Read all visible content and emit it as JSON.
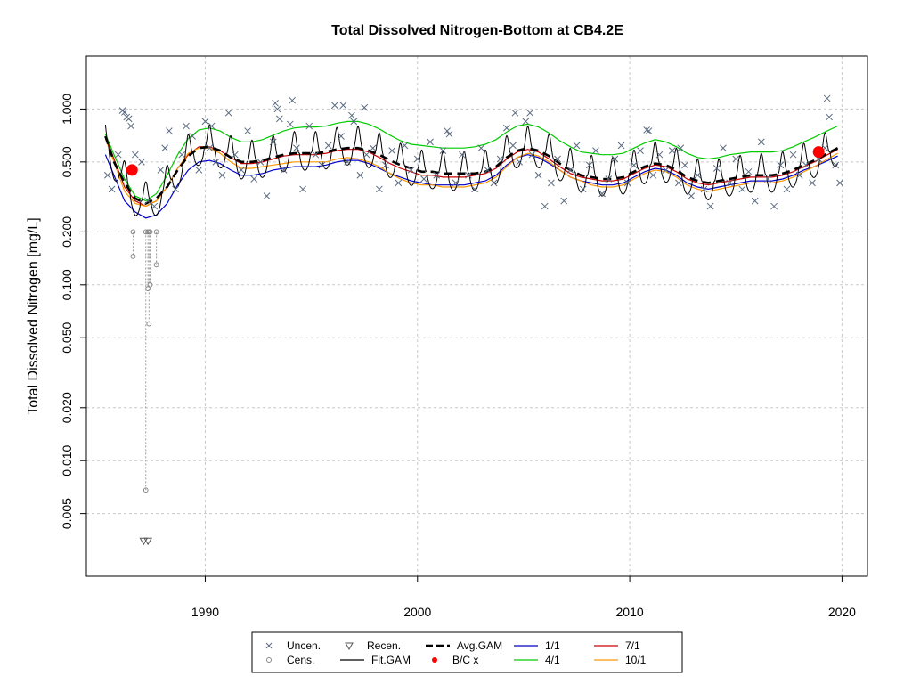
{
  "chart_data": {
    "type": "scatter",
    "title": "Total Dissolved Nitrogen-Bottom at CB4.2E",
    "xlabel": "",
    "ylabel": "Total Dissolved Nitrogen [mg/L]",
    "y_scale": "log",
    "xlim": [
      1984.4,
      2021.2
    ],
    "ylim": [
      0.0022,
      2.0
    ],
    "x_ticks": [
      1990,
      2000,
      2010,
      2020
    ],
    "x_tick_labels": [
      "1990",
      "2000",
      "2010",
      "2020"
    ],
    "y_ticks": [
      0.005,
      0.01,
      0.02,
      0.05,
      0.1,
      0.2,
      0.5,
      1.0
    ],
    "y_tick_labels": [
      "0.005",
      "0.010",
      "0.020",
      "0.050",
      "0.100",
      "0.200",
      "0.500",
      "1.000"
    ],
    "grid": true,
    "legend_placement": "bottom",
    "legend": [
      {
        "label": "Uncen.",
        "symbol": "x",
        "color": "#5a6a80"
      },
      {
        "label": "Cens.",
        "symbol": "circle",
        "color": "#888888"
      },
      {
        "label": "Recen.",
        "symbol": "triangle-down",
        "color": "#555555"
      },
      {
        "label": "Fit.GAM",
        "symbol": "line",
        "color": "#000000"
      },
      {
        "label": "Avg.GAM",
        "symbol": "dashed-line",
        "color": "#000000"
      },
      {
        "label": "B/C x",
        "symbol": "filled-circle",
        "color": "#ff0000"
      },
      {
        "label": "1/1",
        "symbol": "line",
        "color": "#0000cc"
      },
      {
        "label": "4/1",
        "symbol": "line",
        "color": "#00cc00"
      },
      {
        "label": "7/1",
        "symbol": "line",
        "color": "#cc0000"
      },
      {
        "label": "10/1",
        "symbol": "line",
        "color": "#ff9900"
      }
    ],
    "series": [
      {
        "name": "Avg.GAM",
        "style": "dashed",
        "color": "#000000",
        "x": [
          1985.3,
          1985.7,
          1986.2,
          1986.7,
          1987.2,
          1987.7,
          1988.2,
          1988.7,
          1989.2,
          1989.7,
          1990.2,
          1990.7,
          1991.2,
          1991.7,
          1992.2,
          1992.7,
          1993.2,
          1993.7,
          1994.2,
          1994.7,
          1995.2,
          1995.7,
          1996.2,
          1996.7,
          1997.2,
          1997.7,
          1998.2,
          1998.7,
          1999.2,
          1999.7,
          2000.2,
          2000.7,
          2001.2,
          2001.7,
          2002.2,
          2002.7,
          2003.2,
          2003.7,
          2004.2,
          2004.7,
          2005.2,
          2005.7,
          2006.2,
          2006.7,
          2007.2,
          2007.7,
          2008.2,
          2008.7,
          2009.2,
          2009.7,
          2010.2,
          2010.7,
          2011.2,
          2011.7,
          2012.2,
          2012.7,
          2013.2,
          2013.7,
          2014.2,
          2014.7,
          2015.2,
          2015.7,
          2016.2,
          2016.7,
          2017.2,
          2017.7,
          2018.2,
          2018.7,
          2019.2,
          2019.8
        ],
        "y": [
          0.7,
          0.5,
          0.38,
          0.31,
          0.29,
          0.31,
          0.36,
          0.45,
          0.54,
          0.6,
          0.61,
          0.58,
          0.53,
          0.5,
          0.5,
          0.51,
          0.53,
          0.55,
          0.56,
          0.56,
          0.56,
          0.57,
          0.59,
          0.6,
          0.6,
          0.58,
          0.55,
          0.51,
          0.48,
          0.46,
          0.44,
          0.44,
          0.43,
          0.43,
          0.43,
          0.43,
          0.44,
          0.47,
          0.53,
          0.58,
          0.6,
          0.58,
          0.54,
          0.49,
          0.45,
          0.42,
          0.41,
          0.4,
          0.4,
          0.41,
          0.44,
          0.47,
          0.49,
          0.48,
          0.45,
          0.41,
          0.39,
          0.38,
          0.39,
          0.4,
          0.41,
          0.42,
          0.42,
          0.42,
          0.43,
          0.45,
          0.48,
          0.51,
          0.55,
          0.6
        ]
      },
      {
        "name": "1/1",
        "style": "solid",
        "color": "#0000cc",
        "x": [
          1985.3,
          1985.7,
          1986.2,
          1986.7,
          1987.2,
          1987.7,
          1988.2,
          1988.7,
          1989.2,
          1989.7,
          1990.2,
          1990.7,
          1991.2,
          1991.7,
          1992.2,
          1992.7,
          1993.2,
          1993.7,
          1994.2,
          1994.7,
          1995.2,
          1995.7,
          1996.2,
          1996.7,
          1997.2,
          1997.7,
          1998.2,
          1998.7,
          1999.2,
          1999.7,
          2000.2,
          2000.7,
          2001.2,
          2001.7,
          2002.2,
          2002.7,
          2003.2,
          2003.7,
          2004.2,
          2004.7,
          2005.2,
          2005.7,
          2006.2,
          2006.7,
          2007.2,
          2007.7,
          2008.2,
          2008.7,
          2009.2,
          2009.7,
          2010.2,
          2010.7,
          2011.2,
          2011.7,
          2012.2,
          2012.7,
          2013.2,
          2013.7,
          2014.2,
          2014.7,
          2015.2,
          2015.7,
          2016.2,
          2016.7,
          2017.2,
          2017.7,
          2018.2,
          2018.7,
          2019.2,
          2019.8
        ],
        "y": [
          0.55,
          0.42,
          0.3,
          0.26,
          0.24,
          0.25,
          0.29,
          0.37,
          0.45,
          0.5,
          0.51,
          0.49,
          0.45,
          0.42,
          0.42,
          0.43,
          0.45,
          0.46,
          0.47,
          0.47,
          0.47,
          0.48,
          0.5,
          0.51,
          0.51,
          0.49,
          0.46,
          0.43,
          0.41,
          0.39,
          0.38,
          0.37,
          0.37,
          0.37,
          0.37,
          0.38,
          0.39,
          0.42,
          0.48,
          0.53,
          0.55,
          0.53,
          0.49,
          0.45,
          0.41,
          0.39,
          0.38,
          0.37,
          0.37,
          0.38,
          0.41,
          0.44,
          0.46,
          0.45,
          0.42,
          0.38,
          0.36,
          0.35,
          0.36,
          0.37,
          0.38,
          0.39,
          0.39,
          0.39,
          0.4,
          0.42,
          0.45,
          0.47,
          0.5,
          0.54
        ]
      },
      {
        "name": "4/1",
        "style": "solid",
        "color": "#00cc00",
        "x": [
          1985.3,
          1985.7,
          1986.2,
          1986.7,
          1987.2,
          1987.7,
          1988.2,
          1988.7,
          1989.2,
          1989.7,
          1990.2,
          1990.7,
          1991.2,
          1991.7,
          1992.2,
          1992.7,
          1993.2,
          1993.7,
          1994.2,
          1994.7,
          1995.2,
          1995.7,
          1996.2,
          1996.7,
          1997.2,
          1997.7,
          1998.2,
          1998.7,
          1999.2,
          1999.7,
          2000.2,
          2000.7,
          2001.2,
          2001.7,
          2002.2,
          2002.7,
          2003.2,
          2003.7,
          2004.2,
          2004.7,
          2005.2,
          2005.7,
          2006.2,
          2006.7,
          2007.2,
          2007.7,
          2008.2,
          2008.7,
          2009.2,
          2009.7,
          2010.2,
          2010.7,
          2011.2,
          2011.7,
          2012.2,
          2012.7,
          2013.2,
          2013.7,
          2014.2,
          2014.7,
          2015.2,
          2015.7,
          2016.2,
          2016.7,
          2017.2,
          2017.7,
          2018.2,
          2018.7,
          2019.2,
          2019.8
        ],
        "y": [
          0.72,
          0.55,
          0.4,
          0.32,
          0.3,
          0.33,
          0.42,
          0.55,
          0.68,
          0.76,
          0.78,
          0.75,
          0.69,
          0.65,
          0.65,
          0.67,
          0.71,
          0.75,
          0.78,
          0.79,
          0.79,
          0.8,
          0.83,
          0.85,
          0.85,
          0.82,
          0.77,
          0.71,
          0.66,
          0.63,
          0.62,
          0.61,
          0.6,
          0.6,
          0.6,
          0.61,
          0.63,
          0.67,
          0.74,
          0.8,
          0.82,
          0.79,
          0.73,
          0.66,
          0.61,
          0.57,
          0.56,
          0.55,
          0.55,
          0.56,
          0.6,
          0.64,
          0.67,
          0.65,
          0.61,
          0.56,
          0.53,
          0.52,
          0.53,
          0.55,
          0.56,
          0.57,
          0.57,
          0.57,
          0.58,
          0.61,
          0.65,
          0.69,
          0.74,
          0.8
        ]
      },
      {
        "name": "7/1",
        "style": "solid",
        "color": "#cc0000",
        "x": [
          1985.3,
          1985.7,
          1986.2,
          1986.7,
          1987.2,
          1987.7,
          1988.2,
          1988.7,
          1989.2,
          1989.7,
          1990.2,
          1990.7,
          1991.2,
          1991.7,
          1992.2,
          1992.7,
          1993.2,
          1993.7,
          1994.2,
          1994.7,
          1995.2,
          1995.7,
          1996.2,
          1996.7,
          1997.2,
          1997.7,
          1998.2,
          1998.7,
          1999.2,
          1999.7,
          2000.2,
          2000.7,
          2001.2,
          2001.7,
          2002.2,
          2002.7,
          2003.2,
          2003.7,
          2004.2,
          2004.7,
          2005.2,
          2005.7,
          2006.2,
          2006.7,
          2007.2,
          2007.7,
          2008.2,
          2008.7,
          2009.2,
          2009.7,
          2010.2,
          2010.7,
          2011.2,
          2011.7,
          2012.2,
          2012.7,
          2013.2,
          2013.7,
          2014.2,
          2014.7,
          2015.2,
          2015.7,
          2016.2,
          2016.7,
          2017.2,
          2017.7,
          2018.2,
          2018.7,
          2019.2,
          2019.8
        ],
        "y": [
          0.7,
          0.52,
          0.36,
          0.3,
          0.28,
          0.3,
          0.36,
          0.46,
          0.55,
          0.61,
          0.61,
          0.58,
          0.53,
          0.49,
          0.49,
          0.5,
          0.52,
          0.54,
          0.55,
          0.55,
          0.55,
          0.56,
          0.58,
          0.59,
          0.59,
          0.57,
          0.53,
          0.49,
          0.46,
          0.44,
          0.42,
          0.42,
          0.41,
          0.41,
          0.41,
          0.42,
          0.43,
          0.46,
          0.52,
          0.57,
          0.59,
          0.57,
          0.52,
          0.47,
          0.43,
          0.41,
          0.4,
          0.39,
          0.39,
          0.4,
          0.43,
          0.46,
          0.48,
          0.47,
          0.44,
          0.4,
          0.38,
          0.37,
          0.38,
          0.39,
          0.4,
          0.41,
          0.41,
          0.41,
          0.42,
          0.44,
          0.47,
          0.5,
          0.54,
          0.59
        ]
      },
      {
        "name": "10/1",
        "style": "solid",
        "color": "#ff9900",
        "x": [
          1985.3,
          1985.7,
          1986.2,
          1986.7,
          1987.2,
          1987.7,
          1988.2,
          1988.7,
          1989.2,
          1989.7,
          1990.2,
          1990.7,
          1991.2,
          1991.7,
          1992.2,
          1992.7,
          1993.2,
          1993.7,
          1994.2,
          1994.7,
          1995.2,
          1995.7,
          1996.2,
          1996.7,
          1997.2,
          1997.7,
          1998.2,
          1998.7,
          1999.2,
          1999.7,
          2000.2,
          2000.7,
          2001.2,
          2001.7,
          2002.2,
          2002.7,
          2003.2,
          2003.7,
          2004.2,
          2004.7,
          2005.2,
          2005.7,
          2006.2,
          2006.7,
          2007.2,
          2007.7,
          2008.2,
          2008.7,
          2009.2,
          2009.7,
          2010.2,
          2010.7,
          2011.2,
          2011.7,
          2012.2,
          2012.7,
          2013.2,
          2013.7,
          2014.2,
          2014.7,
          2015.2,
          2015.7,
          2016.2,
          2016.7,
          2017.2,
          2017.7,
          2018.2,
          2018.7,
          2019.2,
          2019.8
        ],
        "y": [
          0.68,
          0.5,
          0.34,
          0.29,
          0.28,
          0.3,
          0.36,
          0.46,
          0.56,
          0.6,
          0.6,
          0.56,
          0.5,
          0.46,
          0.46,
          0.47,
          0.48,
          0.49,
          0.5,
          0.5,
          0.5,
          0.5,
          0.52,
          0.53,
          0.52,
          0.5,
          0.47,
          0.43,
          0.4,
          0.38,
          0.37,
          0.37,
          0.36,
          0.36,
          0.36,
          0.37,
          0.38,
          0.41,
          0.47,
          0.53,
          0.56,
          0.54,
          0.5,
          0.45,
          0.41,
          0.39,
          0.37,
          0.36,
          0.36,
          0.37,
          0.4,
          0.43,
          0.45,
          0.44,
          0.41,
          0.37,
          0.35,
          0.34,
          0.35,
          0.36,
          0.37,
          0.38,
          0.38,
          0.38,
          0.39,
          0.41,
          0.44,
          0.47,
          0.51,
          0.56
        ]
      }
    ],
    "fit_gam": {
      "name": "Fit.GAM",
      "color": "#000000",
      "seasonal_peak_ratio": 1.33,
      "seasonal_trough_ratio": 0.8
    },
    "uncensored_points": {
      "x": [
        1985.4,
        1985.6,
        1985.9,
        1986.1,
        1986.3,
        1986.5,
        1986.7,
        1987.0,
        1987.3,
        1987.6,
        1987.9,
        1988.1,
        1988.3,
        1988.6,
        1988.9,
        1989.1,
        1989.4,
        1989.7,
        1990.0,
        1990.2,
        1990.5,
        1990.8,
        1991.1,
        1991.4,
        1991.7,
        1992.0,
        1992.3,
        1992.6,
        1992.9,
        1993.2,
        1993.4,
        1993.7,
        1994.0,
        1994.3,
        1994.6,
        1994.9,
        1995.2,
        1995.5,
        1995.8,
        1996.1,
        1996.4,
        1996.7,
        1997.0,
        1997.3,
        1997.6,
        1997.9,
        1998.2,
        1998.5,
        1998.8,
        1999.1,
        1999.4,
        1999.7,
        2000.0,
        2000.3,
        2000.6,
        2000.9,
        2001.2,
        2001.5,
        2001.8,
        2002.1,
        2002.4,
        2002.7,
        2003.0,
        2003.3,
        2003.6,
        2003.9,
        2004.2,
        2004.5,
        2004.8,
        2005.1,
        2005.4,
        2005.7,
        2006.0,
        2006.3,
        2006.6,
        2006.9,
        2007.2,
        2007.5,
        2007.8,
        2008.1,
        2008.4,
        2008.7,
        2009.0,
        2009.3,
        2009.6,
        2009.9,
        2010.2,
        2010.5,
        2010.8,
        2011.1,
        2011.4,
        2011.7,
        2012.0,
        2012.3,
        2012.6,
        2012.9,
        2013.2,
        2013.5,
        2013.8,
        2014.1,
        2014.4,
        2014.7,
        2015.0,
        2015.3,
        2015.6,
        2015.9,
        2016.2,
        2016.5,
        2016.8,
        2017.1,
        2017.4,
        2017.7,
        2018.0,
        2018.3,
        2018.6,
        2018.9,
        2019.2,
        2019.4,
        2019.7,
        2019.9,
        1986.2,
        1986.4,
        1993.3,
        1994.1,
        1996.5,
        1997.5,
        1990.3,
        2005.3,
        2019.3,
        1993.5,
        1996.9,
        2004.6,
        2001.4,
        2010.9,
        2012.4
      ],
      "y": [
        0.42,
        0.35,
        0.55,
        0.98,
        0.9,
        0.8,
        0.55,
        0.5,
        0.3,
        0.28,
        0.45,
        0.6,
        0.75,
        0.35,
        0.55,
        0.8,
        0.7,
        0.45,
        0.85,
        0.6,
        0.5,
        0.42,
        0.95,
        0.55,
        0.45,
        0.75,
        0.4,
        0.5,
        0.32,
        0.65,
        1.0,
        0.45,
        0.82,
        0.6,
        0.35,
        0.8,
        0.55,
        0.48,
        0.62,
        1.05,
        0.7,
        0.5,
        0.85,
        0.42,
        0.55,
        0.6,
        0.35,
        0.48,
        0.58,
        0.38,
        0.62,
        0.45,
        0.52,
        0.4,
        0.65,
        0.42,
        0.58,
        0.72,
        0.38,
        0.55,
        0.42,
        0.35,
        0.6,
        0.45,
        0.38,
        0.52,
        0.78,
        0.62,
        0.5,
        0.85,
        0.55,
        0.42,
        0.28,
        0.38,
        0.52,
        0.3,
        0.45,
        0.62,
        0.35,
        0.48,
        0.58,
        0.33,
        0.4,
        0.52,
        0.62,
        0.38,
        0.48,
        0.58,
        0.76,
        0.42,
        0.55,
        0.45,
        0.58,
        0.38,
        0.48,
        0.32,
        0.42,
        0.35,
        0.28,
        0.46,
        0.6,
        0.38,
        0.52,
        0.35,
        0.44,
        0.3,
        0.65,
        0.4,
        0.28,
        0.48,
        0.35,
        0.55,
        0.42,
        0.48,
        0.38,
        0.52,
        0.6,
        0.9,
        0.48,
        0.38,
        0.96,
        0.88,
        1.08,
        1.12,
        1.05,
        1.02,
        0.8,
        0.95,
        1.15,
        0.88,
        0.92,
        0.95,
        0.75,
        0.75,
        0.6
      ]
    },
    "censored_points": [
      {
        "x": 1986.6,
        "low": 0.145,
        "high": 0.2
      },
      {
        "x": 1987.2,
        "low": 0.0068,
        "high": 0.2
      },
      {
        "x": 1987.3,
        "low": 0.095,
        "high": 0.2
      },
      {
        "x": 1987.35,
        "low": 0.06,
        "high": 0.2
      },
      {
        "x": 1987.4,
        "low": 0.1,
        "high": 0.2
      },
      {
        "x": 1987.7,
        "low": 0.13,
        "high": 0.2
      }
    ],
    "recensored_points": [
      {
        "x": 1987.1,
        "y": 0.0035
      },
      {
        "x": 1987.3,
        "y": 0.0035
      }
    ],
    "bc_points": [
      {
        "x": 1986.55,
        "y": 0.45
      },
      {
        "x": 2018.9,
        "y": 0.57
      }
    ]
  }
}
